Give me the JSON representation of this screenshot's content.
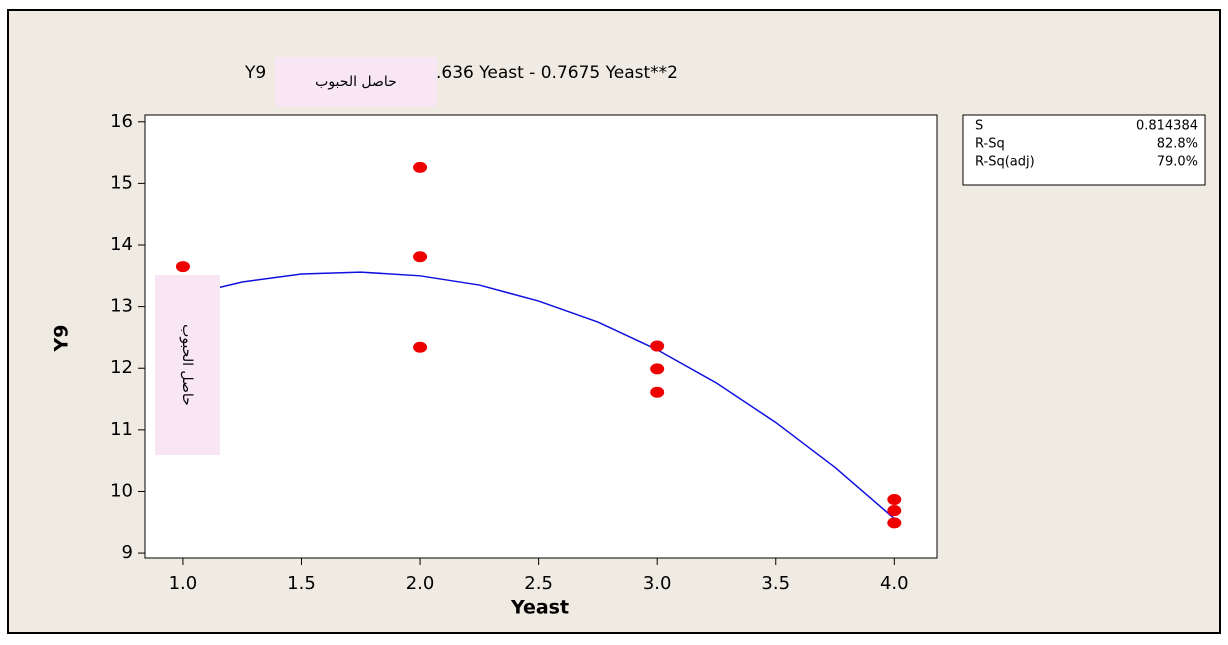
{
  "chart_data": {
    "type": "scatter",
    "title_parts": [
      "Y9",
      ".636 Yeast - 0.7675 Yeast**2"
    ],
    "overlay_label": "حاصل الحبوب",
    "x_label": "Yeast",
    "y_label": "Y9",
    "xlim": [
      0.84,
      4.18
    ],
    "ylim": [
      8.92,
      16.11
    ],
    "xticks": [
      {
        "value": 1,
        "label": "1.0"
      },
      {
        "value": 1.5,
        "label": "1.5"
      },
      {
        "value": 2,
        "label": "2.0"
      },
      {
        "value": 2.5,
        "label": "2.5"
      },
      {
        "value": 3,
        "label": "3.0"
      },
      {
        "value": 3.5,
        "label": "3.5"
      },
      {
        "value": 4,
        "label": "4.0"
      }
    ],
    "yticks": [
      9,
      10,
      11,
      12,
      13,
      14,
      15,
      16
    ],
    "series": [
      {
        "color": "#ee0000",
        "x": [
          1,
          2,
          2,
          2,
          3,
          3,
          3,
          4,
          4,
          4
        ],
        "values": [
          13.65,
          15.26,
          13.81,
          12.34,
          12.36,
          11.99,
          11.61,
          9.87,
          9.69,
          9.49
        ]
      }
    ],
    "fit": {
      "color": "#1010e0",
      "x": [
        1,
        1.25,
        1.5,
        1.75,
        2,
        2.25,
        2.5,
        2.75,
        3,
        3.25,
        3.5,
        3.75,
        4
      ],
      "values": [
        13.17,
        13.4,
        13.53,
        13.56,
        13.5,
        13.35,
        13.09,
        12.75,
        12.3,
        11.76,
        11.12,
        10.39,
        9.56
      ]
    },
    "stats": [
      [
        "S",
        "0.814384"
      ],
      [
        "R-Sq",
        "82.8%"
      ],
      [
        "R-Sq(adj)",
        "79.0%"
      ]
    ]
  }
}
